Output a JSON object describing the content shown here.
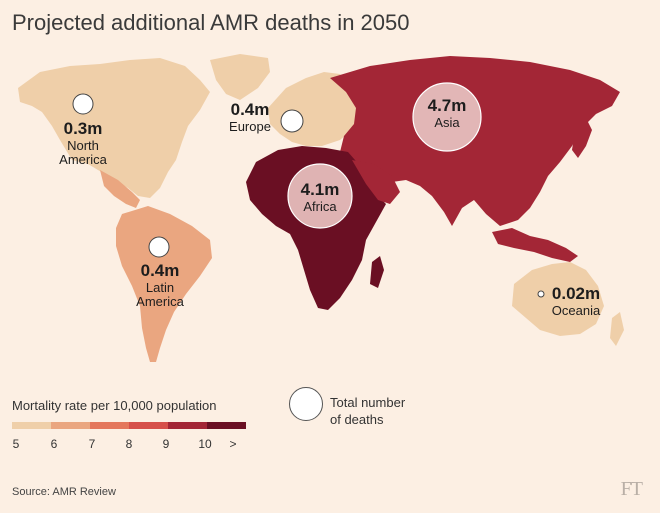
{
  "title": "Projected additional AMR deaths in 2050",
  "colors": {
    "background": "#fcefe3",
    "rate_5": "#efcfa9",
    "rate_6": "#eaa680",
    "rate_7": "#e4775c",
    "rate_8": "#d6504a",
    "rate_9": "#a32636",
    "rate_10": "#6a0f23"
  },
  "regions": [
    {
      "id": "north-america",
      "value": "0.3m",
      "name": "North America",
      "name_lines": [
        "North",
        "America"
      ],
      "deaths_millions": 0.3,
      "rate_color": "rate_5"
    },
    {
      "id": "europe",
      "value": "0.4m",
      "name": "Europe",
      "name_lines": [
        "Europe"
      ],
      "deaths_millions": 0.4,
      "rate_color": "rate_5"
    },
    {
      "id": "asia",
      "value": "4.7m",
      "name": "Asia",
      "name_lines": [
        "Asia"
      ],
      "deaths_millions": 4.7,
      "rate_color": "rate_9"
    },
    {
      "id": "africa",
      "value": "4.1m",
      "name": "Africa",
      "name_lines": [
        "Africa"
      ],
      "deaths_millions": 4.1,
      "rate_color": "rate_10"
    },
    {
      "id": "latin-america",
      "value": "0.4m",
      "name": "Latin America",
      "name_lines": [
        "Latin",
        "America"
      ],
      "deaths_millions": 0.4,
      "rate_color": "rate_6"
    },
    {
      "id": "oceania",
      "value": "0.02m",
      "name": "Oceania",
      "name_lines": [
        "Oceania"
      ],
      "deaths_millions": 0.02,
      "rate_color": "rate_5"
    }
  ],
  "legend": {
    "rate_title": "Mortality rate per 10,000 population",
    "ticks": [
      "5",
      "6",
      "7",
      "8",
      "9",
      "10",
      ">"
    ],
    "total_label_line1": "Total number",
    "total_label_line2": "of deaths"
  },
  "source": "Source: AMR Review",
  "logo_text": "FT"
}
